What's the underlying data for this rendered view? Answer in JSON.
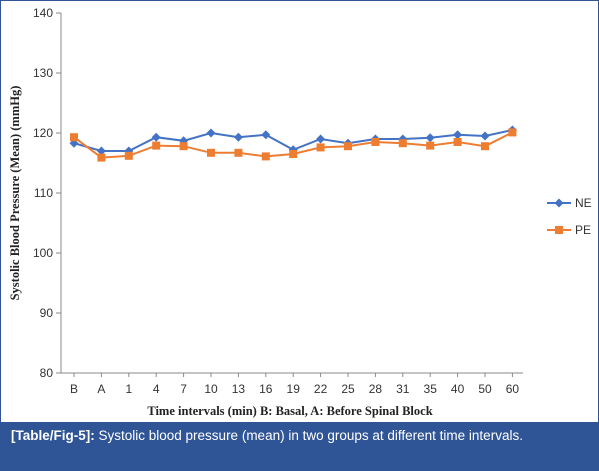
{
  "chart_data": {
    "type": "line",
    "categories": [
      "B",
      "A",
      "1",
      "4",
      "7",
      "10",
      "13",
      "16",
      "19",
      "22",
      "25",
      "28",
      "31",
      "35",
      "40",
      "50",
      "60"
    ],
    "series": [
      {
        "name": "NE",
        "color": "#4472c4",
        "marker": "diamond",
        "values": [
          118.3,
          117.0,
          117.0,
          119.3,
          118.7,
          120.0,
          119.3,
          119.7,
          117.2,
          119.0,
          118.3,
          119.0,
          119.0,
          119.2,
          119.7,
          119.5,
          120.5
        ]
      },
      {
        "name": "PE",
        "color": "#ed7d31",
        "marker": "square",
        "values": [
          119.3,
          115.9,
          116.2,
          117.9,
          117.8,
          116.7,
          116.7,
          116.1,
          116.5,
          117.6,
          117.8,
          118.5,
          118.3,
          117.9,
          118.5,
          117.8,
          120.1
        ]
      }
    ],
    "xlabel": "Time intervals (min) B: Basal, A: Before Spinal Block",
    "ylabel": "Systolic Blood Pressure (Mean) (mmHg)",
    "ylim": [
      80,
      140
    ],
    "yticks": [
      80,
      90,
      100,
      110,
      120,
      130,
      140
    ],
    "grid": false,
    "legend": "right"
  },
  "caption": {
    "label": "[Table/Fig-5]:",
    "text": " Systolic blood pressure (mean) in two groups at different time intervals."
  }
}
